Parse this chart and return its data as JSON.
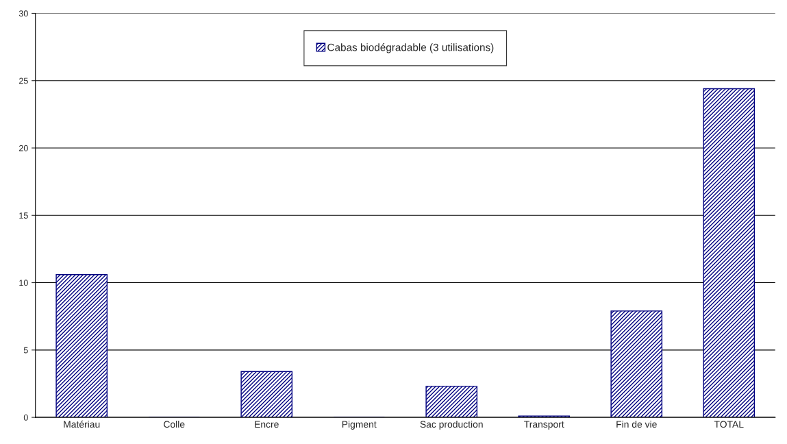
{
  "chart_data": {
    "type": "bar",
    "categories": [
      "Matériau",
      "Colle",
      "Encre",
      "Pigment",
      "Sac production",
      "Transport",
      "Fin de vie",
      "TOTAL"
    ],
    "series": [
      {
        "name": "Cabas biodégradable (3 utilisations)",
        "color": "#000080",
        "values": [
          10.6,
          0,
          3.4,
          0,
          2.3,
          0.1,
          7.9,
          24.4
        ]
      }
    ],
    "ylim": [
      0,
      30
    ],
    "yticks": [
      0,
      5,
      10,
      15,
      20,
      25,
      30
    ],
    "grid": "y",
    "legend": "top"
  }
}
